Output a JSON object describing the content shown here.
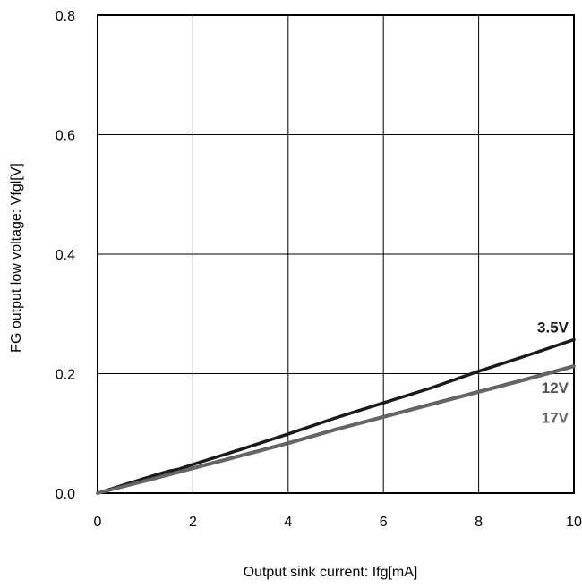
{
  "chart_data": {
    "type": "line",
    "title": "",
    "xlabel": "Output sink current: Ifg[mA]",
    "ylabel": "FG output low voltage: Vfgl[V]",
    "xlim": [
      0,
      10
    ],
    "ylim": [
      0,
      0.8
    ],
    "x_ticks": [
      0,
      2,
      4,
      6,
      8,
      10
    ],
    "x_tick_labels": [
      "0",
      "2",
      "4",
      "6",
      "8",
      "10"
    ],
    "y_ticks": [
      0,
      0.2,
      0.4,
      0.6,
      0.8
    ],
    "y_tick_labels": [
      "0.0",
      "0.2",
      "0.4",
      "0.6",
      "0.8"
    ],
    "grid": true,
    "series": [
      {
        "name": "3.5V",
        "color": "#1a1a1a",
        "label_color": "#1a1a1a",
        "x": [
          0,
          1,
          1.5,
          1.7,
          2,
          3,
          4,
          5,
          6,
          7,
          8,
          9,
          10
        ],
        "y": [
          0,
          0.025,
          0.037,
          0.04,
          0.048,
          0.073,
          0.099,
          0.126,
          0.151,
          0.176,
          0.204,
          0.23,
          0.257
        ]
      },
      {
        "name": "12V",
        "color": "#555555",
        "label_color": "#555555",
        "x": [
          0,
          1,
          2,
          3,
          4,
          5,
          6,
          7,
          8,
          9,
          10
        ],
        "y": [
          0,
          0.021,
          0.042,
          0.063,
          0.084,
          0.107,
          0.128,
          0.149,
          0.17,
          0.191,
          0.213
        ]
      },
      {
        "name": "17V",
        "color": "#666666",
        "label_color": "#666666",
        "x": [
          0,
          1,
          2,
          3,
          4,
          5,
          6,
          7,
          8,
          9,
          10
        ],
        "y": [
          0,
          0.02,
          0.041,
          0.062,
          0.083,
          0.106,
          0.127,
          0.148,
          0.169,
          0.19,
          0.212
        ]
      }
    ]
  }
}
